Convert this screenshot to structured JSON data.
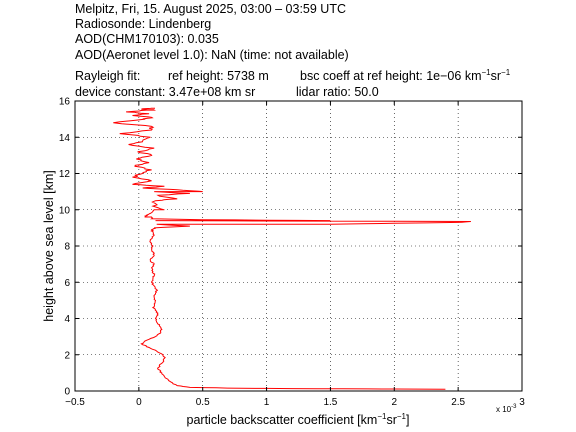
{
  "header": {
    "line1": "Melpitz, Fri, 15. August 2025, 03:00 – 03:59 UTC",
    "line2": "Radiosonde: Lindenberg",
    "line3": "AOD(CHM170103): 0.035",
    "line4": "AOD(Aeronet level 1.0): NaN   (time: not available)",
    "rayleigh_fit": "Rayleigh fit:",
    "ref_height": "ref height: 5738 m",
    "bsc_coeff_prefix": "bsc coeff at ref height: 1e−06 km",
    "device_constant": "device constant: 3.47e+08 km sr",
    "lidar_ratio": "lidar ratio: 50.0"
  },
  "colors": {
    "line": "#ff0000",
    "axes": "#000000",
    "grid": "#000000"
  },
  "chart_data": {
    "type": "line",
    "xlabel": "particle backscatter coefficient [km",
    "ylabel": "height above sea level [km]",
    "x_multiplier": "x 10",
    "x_multiplier_exp": "-3",
    "xlim": [
      -0.0005,
      0.003
    ],
    "ylim": [
      0,
      16
    ],
    "grid": true,
    "x_tick_labels": [
      "−0.5",
      "0",
      "0.5",
      "1",
      "1.5",
      "2",
      "2.5",
      "3"
    ],
    "y_tick_labels": [
      "0",
      "2",
      "4",
      "6",
      "8",
      "10",
      "12",
      "14",
      "16"
    ],
    "series": [
      {
        "x": [
          0.0024,
          0.0016,
          0.0008,
          0.0004,
          0.0003,
          0.00025,
          0.0002,
          0.00018,
          0.00015,
          0.00016,
          0.00019,
          0.0002,
          0.00019,
          0.00014,
          8e-05,
          2e-05,
          6e-05,
          0.00013,
          0.00017,
          0.00018,
          0.00016,
          0.00014,
          0.00013,
          0.00015,
          0.00014,
          0.00011,
          0.00012,
          0.00013,
          0.00012,
          0.00013,
          0.00014,
          0.00012,
          0.0001,
          0.00011,
          0.00012,
          0.00011,
          0.0001,
          0.00012,
          9e-05,
          0.00011,
          0.00012,
          0.0001,
          0.00011,
          9e-05,
          0.0001,
          0.00012,
          0.00011,
          0.00013,
          0.00014,
          0.00013,
          0.0001,
          9e-05,
          0.00012,
          0.00011,
          0.00013,
          0.00015,
          0.00012,
          3e-05,
          -5e-05,
          0.0001,
          0.0001,
          0.00012,
          0.0004,
          0.0015,
          0.0025,
          0.0026,
          0.0015,
          0.0005,
          0.0001,
          5e-05,
          6e-05,
          0.0002,
          0.0003,
          0.0004,
          0.0005,
          0.0003,
          0.0002,
          0.0001,
          -5e-05,
          3e-05,
          0.0001,
          -3e-05,
          8e-05,
          -2e-05,
          0.0001,
          -1e-05,
          0.00012,
          -8e-05,
          3e-05,
          9e-05,
          -0.00015,
          0.0001,
          0.0001,
          -0.0002,
          5e-05,
          0.0001,
          -5e-05,
          8e-05,
          -0.0001,
          6e-05,
          0.00012,
          2e-05,
          0.0001,
          0.0001
        ],
        "y": [
          0.1,
          0.12,
          0.15,
          0.2,
          0.3,
          0.5,
          0.8,
          1.0,
          1.2,
          1.4,
          1.6,
          1.8,
          2.0,
          2.2,
          2.4,
          2.6,
          2.8,
          3.0,
          3.2,
          3.4,
          3.6,
          3.8,
          4.0,
          4.2,
          4.4,
          4.6,
          4.8,
          5.0,
          5.2,
          5.4,
          5.6,
          5.8,
          6.0,
          6.2,
          6.4,
          6.6,
          6.8,
          7.0,
          7.2,
          7.4,
          7.6,
          7.8,
          8.0,
          8.2,
          8.4,
          8.6,
          8.8,
          9.0,
          9.2,
          9.4,
          9.6,
          9.8,
          10.0,
          10.2,
          10.5,
          10.8,
          11.0,
          11.2,
          11.4,
          11.6,
          8.9,
          9.0,
          9.1,
          9.2,
          9.3,
          9.35,
          9.4,
          9.45,
          9.5,
          9.6,
          9.7,
          10.0,
          10.6,
          10.9,
          11.0,
          11.1,
          11.3,
          11.6,
          11.8,
          12.0,
          12.2,
          12.4,
          12.6,
          12.8,
          13.0,
          13.2,
          13.4,
          13.6,
          13.8,
          14.0,
          14.2,
          14.4,
          14.6,
          14.8,
          15.0,
          15.1,
          15.2,
          15.3,
          15.4,
          15.5,
          15.5,
          15.55,
          15.6,
          15.6
        ]
      }
    ]
  }
}
